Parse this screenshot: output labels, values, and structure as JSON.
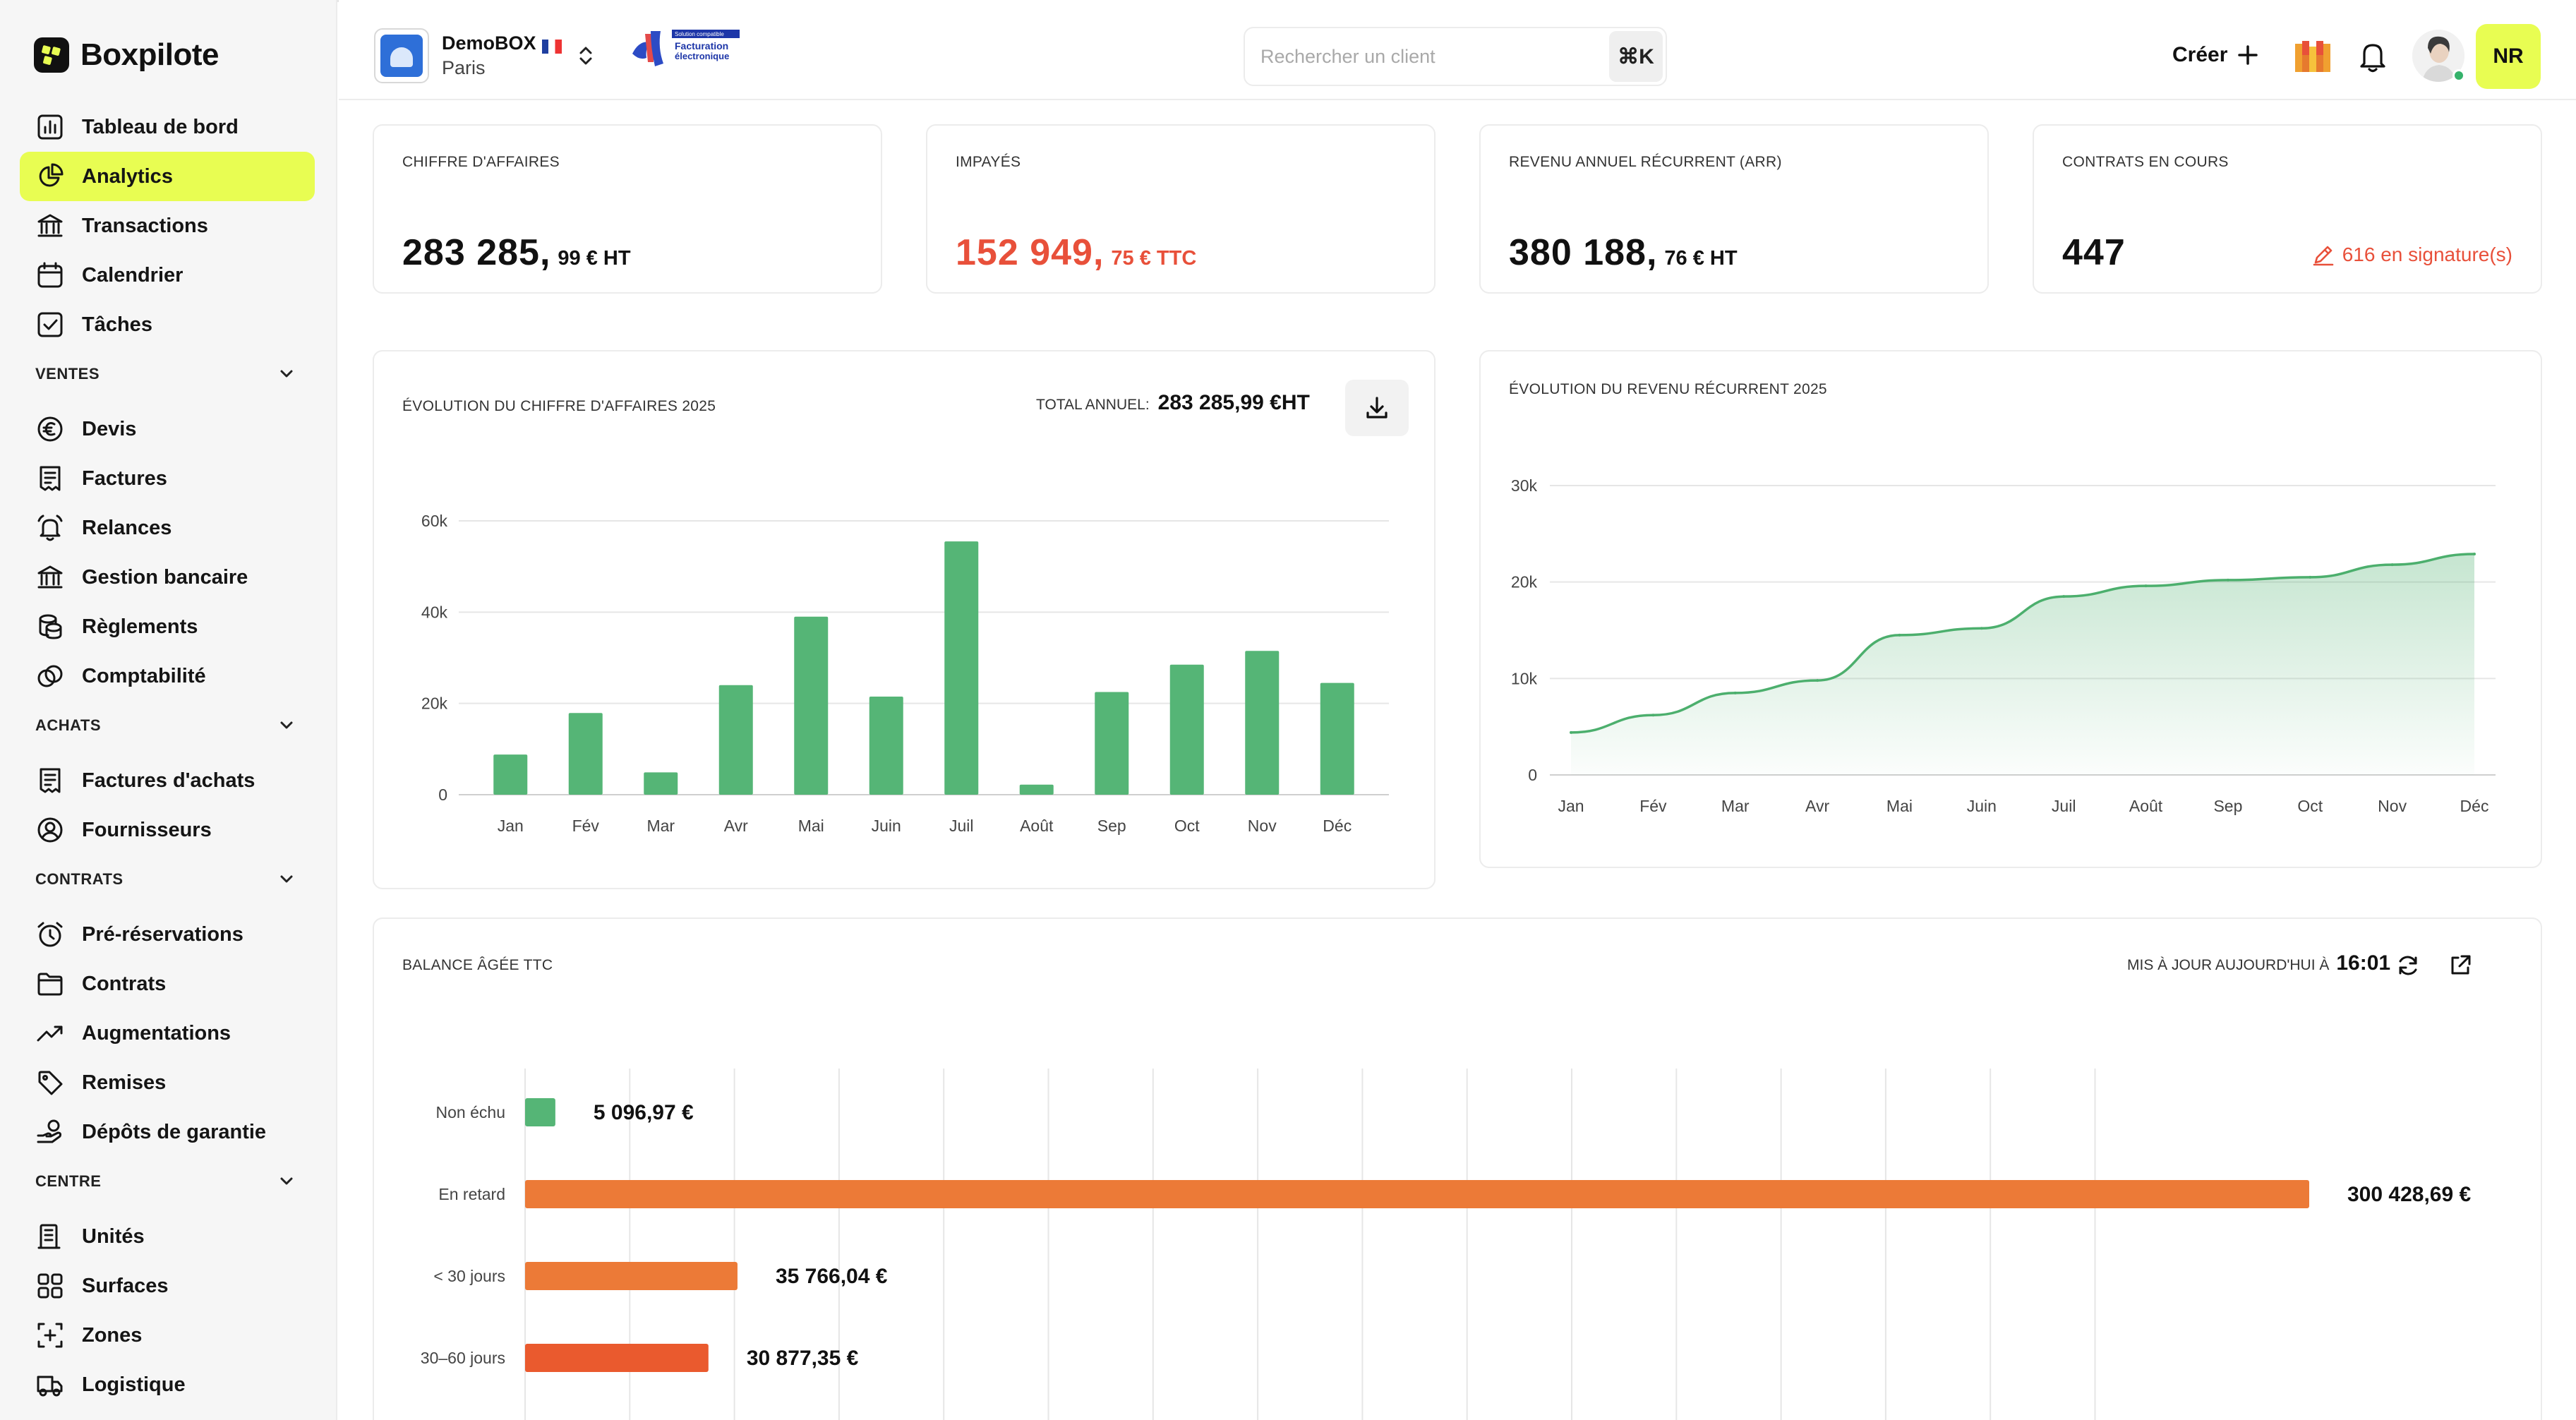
{
  "app": {
    "name": "Boxpilote"
  },
  "sidebar": {
    "top_items": [
      {
        "label": "Tableau de bord",
        "icon": "chart-bars-icon"
      },
      {
        "label": "Analytics",
        "icon": "pie-chart-icon",
        "active": true
      },
      {
        "label": "Transactions",
        "icon": "bank-icon"
      },
      {
        "label": "Calendrier",
        "icon": "calendar-icon"
      },
      {
        "label": "Tâches",
        "icon": "checkbox-icon"
      }
    ],
    "sections": [
      {
        "title": "VENTES",
        "items": [
          {
            "label": "Devis",
            "icon": "euro-icon"
          },
          {
            "label": "Factures",
            "icon": "invoice-icon"
          },
          {
            "label": "Relances",
            "icon": "bell-ring-icon"
          },
          {
            "label": "Gestion bancaire",
            "icon": "bank-icon"
          },
          {
            "label": "Règlements",
            "icon": "coins-icon"
          },
          {
            "label": "Comptabilité",
            "icon": "rings-icon"
          }
        ]
      },
      {
        "title": "ACHATS",
        "items": [
          {
            "label": "Factures d'achats",
            "icon": "invoice-icon"
          },
          {
            "label": "Fournisseurs",
            "icon": "user-circle-icon"
          }
        ]
      },
      {
        "title": "CONTRATS",
        "items": [
          {
            "label": "Pré-réservations",
            "icon": "alarm-icon"
          },
          {
            "label": "Contrats",
            "icon": "folder-icon"
          },
          {
            "label": "Augmentations",
            "icon": "trend-up-icon"
          },
          {
            "label": "Remises",
            "icon": "tag-icon"
          },
          {
            "label": "Dépôts de garantie",
            "icon": "hand-coin-icon"
          }
        ]
      },
      {
        "title": "CENTRE",
        "items": [
          {
            "label": "Unités",
            "icon": "building-icon"
          },
          {
            "label": "Surfaces",
            "icon": "grid-icon"
          },
          {
            "label": "Zones",
            "icon": "zone-icon"
          },
          {
            "label": "Logistique",
            "icon": "truck-icon"
          }
        ]
      }
    ]
  },
  "topbar": {
    "org_name": "DemoBOX",
    "org_city": "Paris",
    "badge_line1": "Solution compatible",
    "badge_line2": "Facturation",
    "badge_line3": "électronique",
    "search_placeholder": "Rechercher un client",
    "search_shortcut": "⌘K",
    "create_label": "Créer",
    "user_initials": "NR"
  },
  "kpis": [
    {
      "label": "CHIFFRE D'AFFAIRES",
      "value_main": "283 285,",
      "value_suffix": "99 € HT",
      "color": "#111111"
    },
    {
      "label": "IMPAYÉS",
      "value_main": "152 949,",
      "value_suffix": "75 € TTC",
      "color": "#e8503a"
    },
    {
      "label": "REVENU ANNUEL RÉCURRENT (ARR)",
      "value_main": "380 188,",
      "value_suffix": "76 € HT",
      "color": "#111111"
    },
    {
      "label": "CONTRATS EN COURS",
      "value_main": "447",
      "value_suffix": "",
      "color": "#111111",
      "side_note": "616 en signature(s)"
    }
  ],
  "revenue_panel": {
    "title": "ÉVOLUTION DU CHIFFRE D'AFFAIRES 2025",
    "total_label": "TOTAL ANNUEL:",
    "total_value": "283 285,99 €HT"
  },
  "recurring_panel": {
    "title": "ÉVOLUTION DU REVENU RÉCURRENT 2025"
  },
  "aging_panel": {
    "title": "BALANCE ÂGÉE TTC",
    "updated_label": "MIS À JOUR AUJOURD'HUI À",
    "updated_time": "16:01"
  },
  "chart_data": [
    {
      "type": "bar",
      "categories": [
        "Jan",
        "Fév",
        "Mar",
        "Avr",
        "Mai",
        "Juin",
        "Juil",
        "Août",
        "Sep",
        "Oct",
        "Nov",
        "Déc"
      ],
      "values": [
        8800,
        17900,
        4900,
        24000,
        39000,
        21500,
        55500,
        2200,
        22500,
        28500,
        31500,
        24500
      ],
      "yticks": [
        "0",
        "20k",
        "40k",
        "60k"
      ],
      "ylim": [
        0,
        60000
      ],
      "color": "#55b576"
    },
    {
      "type": "area",
      "categories": [
        "Jan",
        "Fév",
        "Mar",
        "Avr",
        "Mai",
        "Juin",
        "Juil",
        "Août",
        "Sep",
        "Oct",
        "Nov",
        "Déc"
      ],
      "values": [
        4400,
        6200,
        8500,
        9800,
        14500,
        15200,
        18500,
        19600,
        20200,
        20500,
        21800,
        22900
      ],
      "yticks": [
        "0",
        "10k",
        "20k",
        "30k"
      ],
      "ylim": [
        0,
        30000
      ],
      "color": "#4caf6d"
    },
    {
      "type": "bar",
      "orientation": "horizontal",
      "categories": [
        "Non échu",
        "En retard",
        "< 30 jours",
        "30–60 jours"
      ],
      "values": [
        5096.97,
        300428.69,
        35766.04,
        30877.35
      ],
      "value_labels": [
        "5 096,97 €",
        "300 428,69 €",
        "35 766,04 €",
        "30 877,35 €"
      ],
      "colors": [
        "#55b576",
        "#ec7a37",
        "#ec7a37",
        "#ea5a2e"
      ],
      "xlim": [
        0,
        300428.69
      ]
    }
  ]
}
